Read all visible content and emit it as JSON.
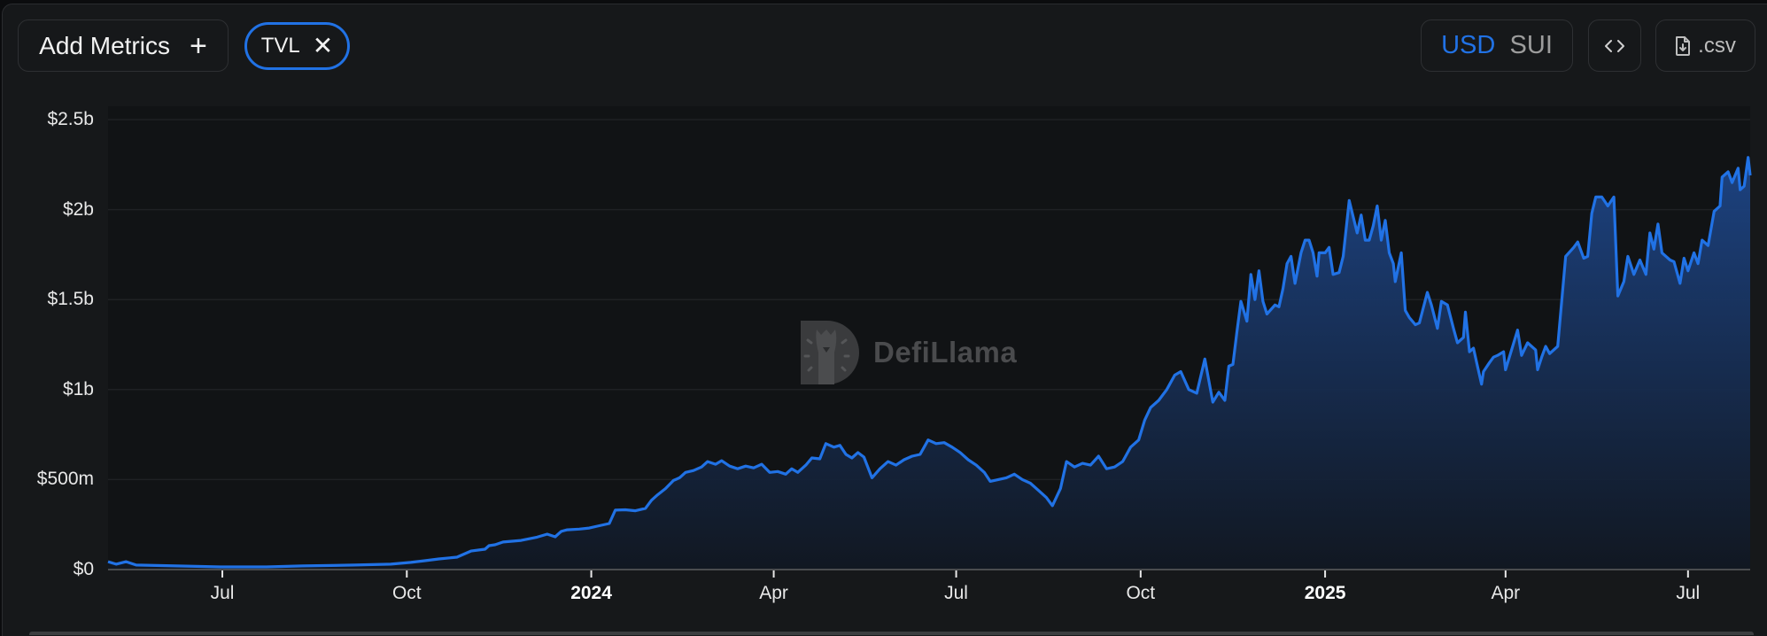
{
  "toolbar": {
    "add_metrics_label": "Add Metrics",
    "add_metrics_icon": "plus-icon",
    "active_metric_label": "TVL",
    "active_metric_remove_icon": "close-icon",
    "currency_options": [
      "USD",
      "SUI"
    ],
    "currency_selected": "USD",
    "embed_icon": "code-brackets-icon",
    "csv_label": ".csv",
    "csv_icon": "file-download-icon"
  },
  "watermark": {
    "text": "DefiLlama",
    "icon": "defillama-logo-icon"
  },
  "colors": {
    "accent": "#2172e5",
    "line": "#2172e5",
    "area_top": "#1d4587",
    "area_bottom": "#111823",
    "background": "#16181a",
    "plot_background": "#111315",
    "grid": "#1f2124",
    "axis": "#4a4c4f",
    "inactive_text": "#9d9d9d"
  },
  "chart_data": {
    "type": "area",
    "title": "",
    "xlabel": "",
    "ylabel": "",
    "series_name": "TVL",
    "unit": "USD",
    "ylim": [
      0,
      2.5
    ],
    "y_unit": "billions",
    "y_ticks": [
      {
        "value": 0,
        "label": "$0"
      },
      {
        "value": 0.5,
        "label": "$500m"
      },
      {
        "value": 1.0,
        "label": "$1b"
      },
      {
        "value": 1.5,
        "label": "$1.5b"
      },
      {
        "value": 2.0,
        "label": "$2b"
      },
      {
        "value": 2.5,
        "label": "$2.5b"
      }
    ],
    "x_ticks": [
      {
        "label": "Jul",
        "date": "2023-07-01",
        "bold": false
      },
      {
        "label": "Oct",
        "date": "2023-10-01",
        "bold": false
      },
      {
        "label": "2024",
        "date": "2024-01-01",
        "bold": true
      },
      {
        "label": "Apr",
        "date": "2024-04-01",
        "bold": false
      },
      {
        "label": "Jul",
        "date": "2024-07-01",
        "bold": false
      },
      {
        "label": "Oct",
        "date": "2024-10-01",
        "bold": false
      },
      {
        "label": "2025",
        "date": "2025-01-01",
        "bold": true
      },
      {
        "label": "Apr",
        "date": "2025-04-01",
        "bold": false
      },
      {
        "label": "Jul",
        "date": "2025-07-01",
        "bold": false
      }
    ],
    "x_range": [
      "2023-05-05",
      "2025-08-01"
    ],
    "grid": true,
    "legend": false,
    "points": [
      [
        "2023-05-05",
        0.044
      ],
      [
        "2023-05-09",
        0.03
      ],
      [
        "2023-05-14",
        0.044
      ],
      [
        "2023-05-19",
        0.025
      ],
      [
        "2023-06-08",
        0.02
      ],
      [
        "2023-06-30",
        0.015
      ],
      [
        "2023-07-23",
        0.015
      ],
      [
        "2023-08-10",
        0.02
      ],
      [
        "2023-09-05",
        0.025
      ],
      [
        "2023-09-23",
        0.03
      ],
      [
        "2023-10-03",
        0.04
      ],
      [
        "2023-10-10",
        0.049
      ],
      [
        "2023-10-17",
        0.059
      ],
      [
        "2023-10-26",
        0.069
      ],
      [
        "2023-11-02",
        0.103
      ],
      [
        "2023-11-09",
        0.113
      ],
      [
        "2023-11-11",
        0.133
      ],
      [
        "2023-11-14",
        0.138
      ],
      [
        "2023-11-18",
        0.153
      ],
      [
        "2023-11-27",
        0.162
      ],
      [
        "2023-12-05",
        0.18
      ],
      [
        "2023-12-10",
        0.197
      ],
      [
        "2023-12-14",
        0.182
      ],
      [
        "2023-12-17",
        0.212
      ],
      [
        "2023-12-20",
        0.221
      ],
      [
        "2023-12-26",
        0.225
      ],
      [
        "2023-12-31",
        0.231
      ],
      [
        "2024-01-04",
        0.241
      ],
      [
        "2024-01-10",
        0.256
      ],
      [
        "2024-01-13",
        0.33
      ],
      [
        "2024-01-18",
        0.332
      ],
      [
        "2024-01-23",
        0.327
      ],
      [
        "2024-01-28",
        0.34
      ],
      [
        "2024-01-31",
        0.385
      ],
      [
        "2024-02-03",
        0.415
      ],
      [
        "2024-02-07",
        0.45
      ],
      [
        "2024-02-11",
        0.495
      ],
      [
        "2024-02-14",
        0.51
      ],
      [
        "2024-02-17",
        0.54
      ],
      [
        "2024-02-21",
        0.55
      ],
      [
        "2024-02-25",
        0.57
      ],
      [
        "2024-02-28",
        0.6
      ],
      [
        "2024-03-03",
        0.585
      ],
      [
        "2024-03-06",
        0.605
      ],
      [
        "2024-03-10",
        0.575
      ],
      [
        "2024-03-14",
        0.56
      ],
      [
        "2024-03-18",
        0.575
      ],
      [
        "2024-03-22",
        0.565
      ],
      [
        "2024-03-26",
        0.585
      ],
      [
        "2024-03-30",
        0.54
      ],
      [
        "2024-04-03",
        0.545
      ],
      [
        "2024-04-07",
        0.53
      ],
      [
        "2024-04-10",
        0.56
      ],
      [
        "2024-04-13",
        0.54
      ],
      [
        "2024-04-17",
        0.58
      ],
      [
        "2024-04-20",
        0.62
      ],
      [
        "2024-04-24",
        0.615
      ],
      [
        "2024-04-27",
        0.7
      ],
      [
        "2024-05-01",
        0.68
      ],
      [
        "2024-05-04",
        0.69
      ],
      [
        "2024-05-07",
        0.64
      ],
      [
        "2024-05-10",
        0.62
      ],
      [
        "2024-05-13",
        0.65
      ],
      [
        "2024-05-16",
        0.625
      ],
      [
        "2024-05-20",
        0.51
      ],
      [
        "2024-05-24",
        0.56
      ],
      [
        "2024-05-28",
        0.6
      ],
      [
        "2024-06-01",
        0.58
      ],
      [
        "2024-06-05",
        0.61
      ],
      [
        "2024-06-09",
        0.63
      ],
      [
        "2024-06-13",
        0.64
      ],
      [
        "2024-06-17",
        0.72
      ],
      [
        "2024-06-21",
        0.7
      ],
      [
        "2024-06-25",
        0.705
      ],
      [
        "2024-06-29",
        0.68
      ],
      [
        "2024-07-03",
        0.65
      ],
      [
        "2024-07-07",
        0.61
      ],
      [
        "2024-07-11",
        0.58
      ],
      [
        "2024-07-15",
        0.54
      ],
      [
        "2024-07-18",
        0.49
      ],
      [
        "2024-07-22",
        0.5
      ],
      [
        "2024-07-26",
        0.51
      ],
      [
        "2024-07-30",
        0.53
      ],
      [
        "2024-08-03",
        0.5
      ],
      [
        "2024-08-07",
        0.48
      ],
      [
        "2024-08-11",
        0.44
      ],
      [
        "2024-08-15",
        0.4
      ],
      [
        "2024-08-18",
        0.355
      ],
      [
        "2024-08-22",
        0.45
      ],
      [
        "2024-08-25",
        0.6
      ],
      [
        "2024-08-29",
        0.57
      ],
      [
        "2024-09-02",
        0.59
      ],
      [
        "2024-09-06",
        0.58
      ],
      [
        "2024-09-10",
        0.63
      ],
      [
        "2024-09-14",
        0.56
      ],
      [
        "2024-09-18",
        0.57
      ],
      [
        "2024-09-22",
        0.6
      ],
      [
        "2024-09-26",
        0.68
      ],
      [
        "2024-09-30",
        0.72
      ],
      [
        "2024-10-03",
        0.83
      ],
      [
        "2024-10-06",
        0.9
      ],
      [
        "2024-10-10",
        0.94
      ],
      [
        "2024-10-14",
        1.0
      ],
      [
        "2024-10-18",
        1.08
      ],
      [
        "2024-10-21",
        1.1
      ],
      [
        "2024-10-25",
        1.0
      ],
      [
        "2024-10-29",
        0.98
      ],
      [
        "2024-11-02",
        1.17
      ],
      [
        "2024-11-06",
        0.93
      ],
      [
        "2024-11-09",
        0.985
      ],
      [
        "2024-11-12",
        0.94
      ],
      [
        "2024-11-14",
        1.13
      ],
      [
        "2024-11-16",
        1.14
      ],
      [
        "2024-11-18",
        1.32
      ],
      [
        "2024-11-20",
        1.49
      ],
      [
        "2024-11-23",
        1.38
      ],
      [
        "2024-11-25",
        1.64
      ],
      [
        "2024-11-27",
        1.5
      ],
      [
        "2024-11-29",
        1.66
      ],
      [
        "2024-12-01",
        1.49
      ],
      [
        "2024-12-03",
        1.42
      ],
      [
        "2024-12-07",
        1.47
      ],
      [
        "2024-12-09",
        1.46
      ],
      [
        "2024-12-11",
        1.56
      ],
      [
        "2024-12-13",
        1.7
      ],
      [
        "2024-12-15",
        1.74
      ],
      [
        "2024-12-17",
        1.59
      ],
      [
        "2024-12-20",
        1.76
      ],
      [
        "2024-12-22",
        1.83
      ],
      [
        "2024-12-24",
        1.83
      ],
      [
        "2024-12-26",
        1.76
      ],
      [
        "2024-12-28",
        1.63
      ],
      [
        "2024-12-29",
        1.76
      ],
      [
        "2025-01-01",
        1.76
      ],
      [
        "2025-01-03",
        1.79
      ],
      [
        "2025-01-05",
        1.64
      ],
      [
        "2025-01-08",
        1.65
      ],
      [
        "2025-01-10",
        1.74
      ],
      [
        "2025-01-13",
        2.05
      ],
      [
        "2025-01-15",
        1.96
      ],
      [
        "2025-01-17",
        1.87
      ],
      [
        "2025-01-19",
        1.97
      ],
      [
        "2025-01-21",
        1.83
      ],
      [
        "2025-01-23",
        1.83
      ],
      [
        "2025-01-25",
        1.91
      ],
      [
        "2025-01-27",
        2.02
      ],
      [
        "2025-01-29",
        1.83
      ],
      [
        "2025-01-31",
        1.94
      ],
      [
        "2025-02-02",
        1.76
      ],
      [
        "2025-02-04",
        1.7
      ],
      [
        "2025-02-05",
        1.6
      ],
      [
        "2025-02-08",
        1.76
      ],
      [
        "2025-02-10",
        1.44
      ],
      [
        "2025-02-12",
        1.4
      ],
      [
        "2025-02-15",
        1.36
      ],
      [
        "2025-02-17",
        1.37
      ],
      [
        "2025-02-21",
        1.54
      ],
      [
        "2025-02-23",
        1.47
      ],
      [
        "2025-02-26",
        1.34
      ],
      [
        "2025-02-28",
        1.49
      ],
      [
        "2025-03-03",
        1.47
      ],
      [
        "2025-03-06",
        1.34
      ],
      [
        "2025-03-08",
        1.26
      ],
      [
        "2025-03-11",
        1.29
      ],
      [
        "2025-03-12",
        1.43
      ],
      [
        "2025-03-14",
        1.21
      ],
      [
        "2025-03-16",
        1.23
      ],
      [
        "2025-03-18",
        1.13
      ],
      [
        "2025-03-20",
        1.03
      ],
      [
        "2025-03-21",
        1.1
      ],
      [
        "2025-03-24",
        1.15
      ],
      [
        "2025-03-26",
        1.18
      ],
      [
        "2025-03-28",
        1.19
      ],
      [
        "2025-03-31",
        1.21
      ],
      [
        "2025-04-01",
        1.11
      ],
      [
        "2025-04-04",
        1.22
      ],
      [
        "2025-04-07",
        1.33
      ],
      [
        "2025-04-09",
        1.19
      ],
      [
        "2025-04-12",
        1.26
      ],
      [
        "2025-04-16",
        1.22
      ],
      [
        "2025-04-17",
        1.11
      ],
      [
        "2025-04-19",
        1.18
      ],
      [
        "2025-04-21",
        1.24
      ],
      [
        "2025-04-23",
        1.2
      ],
      [
        "2025-04-27",
        1.24
      ],
      [
        "2025-04-29",
        1.49
      ],
      [
        "2025-05-01",
        1.74
      ],
      [
        "2025-05-05",
        1.79
      ],
      [
        "2025-05-07",
        1.82
      ],
      [
        "2025-05-10",
        1.73
      ],
      [
        "2025-05-12",
        1.74
      ],
      [
        "2025-05-14",
        1.98
      ],
      [
        "2025-05-16",
        2.07
      ],
      [
        "2025-05-19",
        2.07
      ],
      [
        "2025-05-22",
        2.02
      ],
      [
        "2025-05-25",
        2.07
      ],
      [
        "2025-05-27",
        1.52
      ],
      [
        "2025-05-30",
        1.6
      ],
      [
        "2025-06-01",
        1.74
      ],
      [
        "2025-06-04",
        1.64
      ],
      [
        "2025-06-07",
        1.72
      ],
      [
        "2025-06-10",
        1.64
      ],
      [
        "2025-06-12",
        1.87
      ],
      [
        "2025-06-14",
        1.78
      ],
      [
        "2025-06-16",
        1.92
      ],
      [
        "2025-06-18",
        1.76
      ],
      [
        "2025-06-20",
        1.74
      ],
      [
        "2025-06-22",
        1.72
      ],
      [
        "2025-06-24",
        1.71
      ],
      [
        "2025-06-27",
        1.59
      ],
      [
        "2025-06-29",
        1.73
      ],
      [
        "2025-07-01",
        1.66
      ],
      [
        "2025-07-04",
        1.76
      ],
      [
        "2025-07-06",
        1.7
      ],
      [
        "2025-07-08",
        1.83
      ],
      [
        "2025-07-11",
        1.8
      ],
      [
        "2025-07-14",
        1.99
      ],
      [
        "2025-07-17",
        2.02
      ],
      [
        "2025-07-18",
        2.18
      ],
      [
        "2025-07-21",
        2.21
      ],
      [
        "2025-07-23",
        2.15
      ],
      [
        "2025-07-26",
        2.23
      ],
      [
        "2025-07-27",
        2.11
      ],
      [
        "2025-07-29",
        2.13
      ],
      [
        "2025-07-31",
        2.29
      ],
      [
        "2025-08-01",
        2.19
      ]
    ]
  }
}
